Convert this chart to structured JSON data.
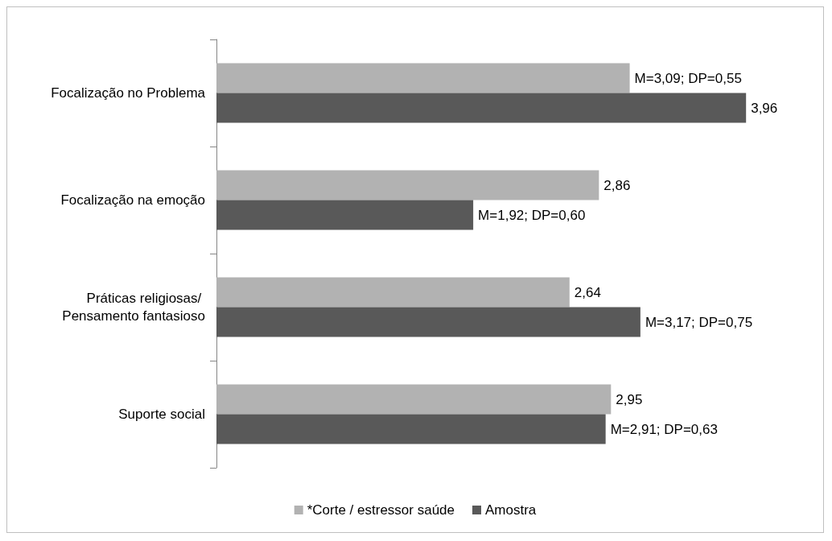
{
  "chart_data": {
    "type": "bar",
    "orientation": "horizontal",
    "categories": [
      "Focalização no Problema",
      "Focalização na emoção",
      "Práticas religiosas/ Pensamento fantasioso",
      "Suporte social"
    ],
    "series": [
      {
        "name": "*Corte / estressor saúde",
        "color": "#b2b2b2",
        "values": [
          3.09,
          2.86,
          2.64,
          2.95
        ],
        "value_labels": [
          "M=3,09; DP=0,55",
          "2,86",
          "2,64",
          "2,95"
        ]
      },
      {
        "name": "Amostra",
        "color": "#595959",
        "values": [
          3.96,
          1.92,
          3.17,
          2.91
        ],
        "value_labels": [
          "3,96",
          "M=1,92; DP=0,60",
          "M=3,17; DP=0,75",
          "M=2,91; DP=0,63"
        ]
      }
    ],
    "grid": false,
    "legend": "bottom"
  }
}
